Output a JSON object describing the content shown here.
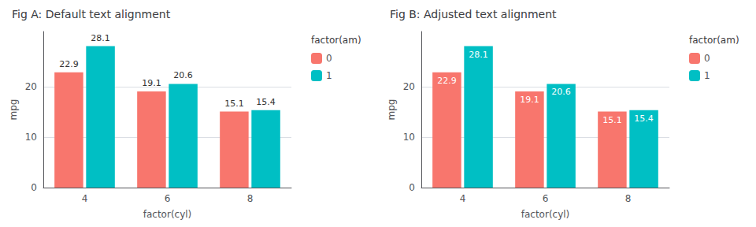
{
  "chart_data": [
    {
      "type": "bar",
      "title": "Fig A: Default text alignment",
      "xlabel": "factor(cyl)",
      "ylabel": "mpg",
      "categories": [
        "4",
        "6",
        "8"
      ],
      "series": [
        {
          "name": "0",
          "color": "#F8766D",
          "values": [
            22.9,
            19.1,
            15.1
          ]
        },
        {
          "name": "1",
          "color": "#00BFC4",
          "values": [
            28.1,
            20.6,
            15.4
          ]
        }
      ],
      "legend_title": "factor(am)",
      "legend": "right",
      "ylim": [
        0,
        31
      ],
      "yticks": [
        0,
        10,
        20
      ],
      "grid": true,
      "data_labels": true
    },
    {
      "type": "bar",
      "title": "Fig B: Adjusted text alignment",
      "xlabel": "factor(cyl)",
      "ylabel": "mpg",
      "categories": [
        "4",
        "6",
        "8"
      ],
      "series": [
        {
          "name": "0",
          "color": "#F8766D",
          "values": [
            22.9,
            19.1,
            15.1
          ]
        },
        {
          "name": "1",
          "color": "#00BFC4",
          "values": [
            28.1,
            20.6,
            15.4
          ]
        }
      ],
      "legend_title": "factor(am)",
      "legend": "right",
      "ylim": [
        0,
        31
      ],
      "yticks": [
        0,
        10,
        20
      ],
      "grid": true,
      "data_labels": true
    }
  ]
}
